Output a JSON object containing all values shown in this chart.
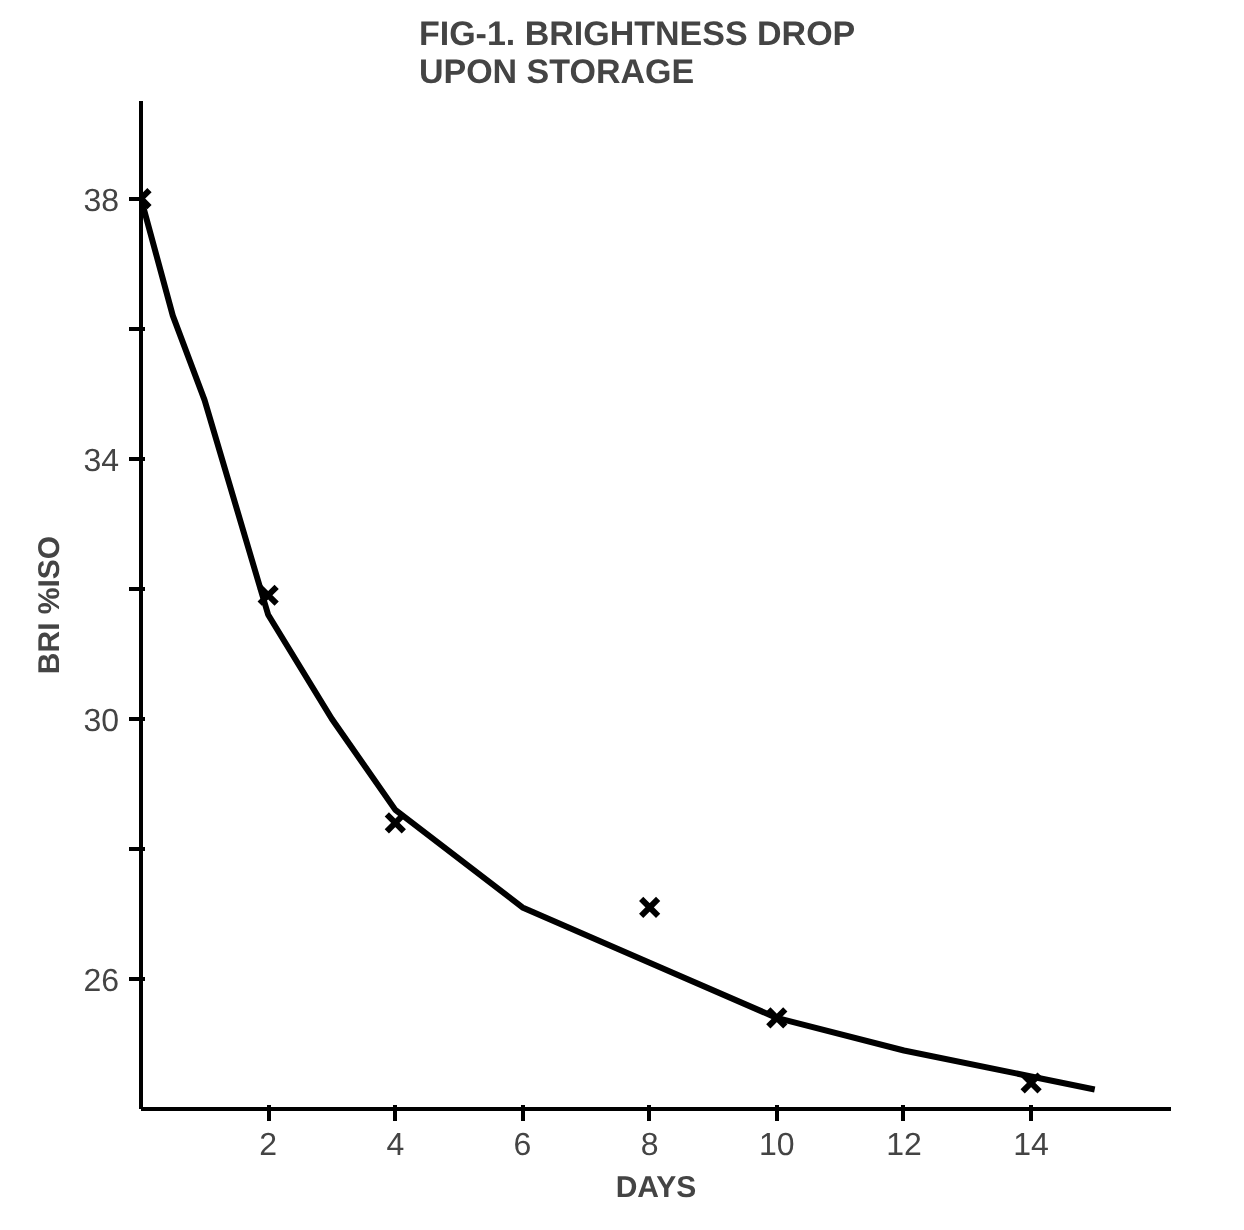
{
  "chart_data": {
    "type": "scatter",
    "title": "FIG-1.   BRIGHTNESS   DROP\nUPON   STORAGE",
    "xlabel": "DAYS",
    "ylabel": "BRI %ISO",
    "x": [
      0,
      2,
      4,
      8,
      10,
      14
    ],
    "series": [
      {
        "color": "#000000",
        "marker": "cross",
        "values": [
          38,
          31.9,
          28.4,
          27.1,
          25.4,
          24.4
        ]
      },
      {
        "type": "line",
        "color": "#000000",
        "marker": "none",
        "line_style": "solid",
        "x": [
          0,
          0.5,
          1,
          2,
          3,
          4,
          6,
          8,
          10,
          12,
          14,
          15
        ],
        "values": [
          38,
          36.2,
          34.9,
          31.6,
          30.0,
          28.6,
          27.1,
          26.25,
          25.4,
          24.9,
          24.5,
          24.3
        ]
      }
    ],
    "xlim": [
      0,
      16.2
    ],
    "ylim": [
      24,
      39.5
    ],
    "xticks": [
      2,
      4,
      6,
      8,
      10,
      12,
      14
    ],
    "yticks": [
      38,
      {
        "value": 36,
        "label": null
      },
      34,
      {
        "value": 32,
        "label": null
      },
      30,
      {
        "value": 28,
        "label": null
      },
      26
    ],
    "grid": false
  }
}
